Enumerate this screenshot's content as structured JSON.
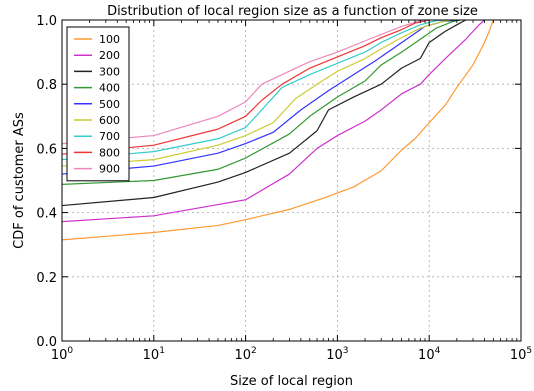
{
  "chart_data": {
    "type": "line",
    "title": "Distribution of local region size as a function of zone size",
    "xlabel": "Size of local region",
    "ylabel": "CDF of customer ASs",
    "xscale": "log",
    "xlim": [
      1,
      100000
    ],
    "ylim": [
      0.0,
      1.0
    ],
    "grid": true,
    "legend_position": "top-left",
    "x_ticks": [
      {
        "value": 1,
        "base": "10",
        "exp": "0"
      },
      {
        "value": 10,
        "base": "10",
        "exp": "1"
      },
      {
        "value": 100,
        "base": "10",
        "exp": "2"
      },
      {
        "value": 1000,
        "base": "10",
        "exp": "3"
      },
      {
        "value": 10000,
        "base": "10",
        "exp": "4"
      },
      {
        "value": 100000,
        "base": "10",
        "exp": "5"
      }
    ],
    "y_ticks": [
      "0.0",
      "0.2",
      "0.4",
      "0.6",
      "0.8",
      "1.0"
    ],
    "series": [
      {
        "name": "100",
        "color": "#ff9933",
        "points": [
          [
            1,
            0.315
          ],
          [
            10,
            0.338
          ],
          [
            50,
            0.36
          ],
          [
            100,
            0.378
          ],
          [
            300,
            0.41
          ],
          [
            700,
            0.445
          ],
          [
            1500,
            0.48
          ],
          [
            3000,
            0.53
          ],
          [
            5000,
            0.595
          ],
          [
            7000,
            0.63
          ],
          [
            10000,
            0.68
          ],
          [
            15000,
            0.735
          ],
          [
            20000,
            0.79
          ],
          [
            30000,
            0.86
          ],
          [
            40000,
            0.93
          ],
          [
            45000,
            0.965
          ],
          [
            50000,
            1.0
          ]
        ]
      },
      {
        "name": "200",
        "color": "#cc33cc",
        "points": [
          [
            1,
            0.372
          ],
          [
            10,
            0.39
          ],
          [
            50,
            0.425
          ],
          [
            100,
            0.44
          ],
          [
            300,
            0.52
          ],
          [
            600,
            0.6
          ],
          [
            1000,
            0.64
          ],
          [
            2000,
            0.685
          ],
          [
            3000,
            0.72
          ],
          [
            5000,
            0.77
          ],
          [
            8000,
            0.8
          ],
          [
            10000,
            0.83
          ],
          [
            15000,
            0.88
          ],
          [
            25000,
            0.94
          ],
          [
            35000,
            0.985
          ],
          [
            40000,
            1.0
          ]
        ]
      },
      {
        "name": "300",
        "color": "#222222",
        "points": [
          [
            1,
            0.422
          ],
          [
            10,
            0.447
          ],
          [
            50,
            0.495
          ],
          [
            100,
            0.525
          ],
          [
            300,
            0.585
          ],
          [
            600,
            0.655
          ],
          [
            800,
            0.72
          ],
          [
            1500,
            0.76
          ],
          [
            3000,
            0.8
          ],
          [
            5000,
            0.85
          ],
          [
            8000,
            0.88
          ],
          [
            10000,
            0.93
          ],
          [
            15000,
            0.965
          ],
          [
            20000,
            0.985
          ],
          [
            25000,
            1.0
          ]
        ]
      },
      {
        "name": "400",
        "color": "#339933",
        "points": [
          [
            1,
            0.488
          ],
          [
            10,
            0.5
          ],
          [
            50,
            0.535
          ],
          [
            100,
            0.57
          ],
          [
            300,
            0.645
          ],
          [
            500,
            0.7
          ],
          [
            1000,
            0.76
          ],
          [
            2000,
            0.81
          ],
          [
            3000,
            0.86
          ],
          [
            5000,
            0.9
          ],
          [
            8000,
            0.94
          ],
          [
            12000,
            0.975
          ],
          [
            18000,
            0.995
          ],
          [
            22000,
            1.0
          ]
        ]
      },
      {
        "name": "500",
        "color": "#3333ff",
        "points": [
          [
            1,
            0.52
          ],
          [
            10,
            0.545
          ],
          [
            50,
            0.585
          ],
          [
            100,
            0.615
          ],
          [
            200,
            0.65
          ],
          [
            400,
            0.72
          ],
          [
            800,
            0.78
          ],
          [
            1500,
            0.83
          ],
          [
            2500,
            0.87
          ],
          [
            4000,
            0.91
          ],
          [
            6000,
            0.945
          ],
          [
            9000,
            0.98
          ],
          [
            14000,
            0.995
          ],
          [
            20000,
            1.0
          ]
        ]
      },
      {
        "name": "600",
        "color": "#cccc33",
        "points": [
          [
            1,
            0.545
          ],
          [
            10,
            0.565
          ],
          [
            50,
            0.61
          ],
          [
            100,
            0.64
          ],
          [
            200,
            0.68
          ],
          [
            350,
            0.755
          ],
          [
            600,
            0.8
          ],
          [
            1000,
            0.84
          ],
          [
            2000,
            0.88
          ],
          [
            3000,
            0.91
          ],
          [
            5000,
            0.945
          ],
          [
            8000,
            0.975
          ],
          [
            12000,
            0.99
          ],
          [
            17000,
            1.0
          ]
        ]
      },
      {
        "name": "700",
        "color": "#33cccc",
        "points": [
          [
            1,
            0.565
          ],
          [
            10,
            0.59
          ],
          [
            50,
            0.63
          ],
          [
            100,
            0.665
          ],
          [
            150,
            0.72
          ],
          [
            250,
            0.79
          ],
          [
            500,
            0.83
          ],
          [
            1000,
            0.865
          ],
          [
            2000,
            0.9
          ],
          [
            3000,
            0.93
          ],
          [
            5000,
            0.96
          ],
          [
            8000,
            0.985
          ],
          [
            12000,
            0.998
          ],
          [
            15000,
            1.0
          ]
        ]
      },
      {
        "name": "800",
        "color": "#ee3333",
        "points": [
          [
            1,
            0.582
          ],
          [
            10,
            0.61
          ],
          [
            50,
            0.66
          ],
          [
            100,
            0.7
          ],
          [
            150,
            0.75
          ],
          [
            250,
            0.8
          ],
          [
            500,
            0.85
          ],
          [
            1000,
            0.885
          ],
          [
            2000,
            0.92
          ],
          [
            3000,
            0.945
          ],
          [
            5000,
            0.97
          ],
          [
            7000,
            0.99
          ],
          [
            10000,
            1.0
          ]
        ]
      },
      {
        "name": "900",
        "color": "#ee88bb",
        "points": [
          [
            1,
            0.615
          ],
          [
            10,
            0.64
          ],
          [
            50,
            0.7
          ],
          [
            100,
            0.745
          ],
          [
            150,
            0.8
          ],
          [
            250,
            0.83
          ],
          [
            500,
            0.87
          ],
          [
            1000,
            0.9
          ],
          [
            2000,
            0.935
          ],
          [
            3000,
            0.955
          ],
          [
            5000,
            0.98
          ],
          [
            8000,
            0.998
          ],
          [
            10000,
            1.0
          ]
        ]
      }
    ]
  }
}
